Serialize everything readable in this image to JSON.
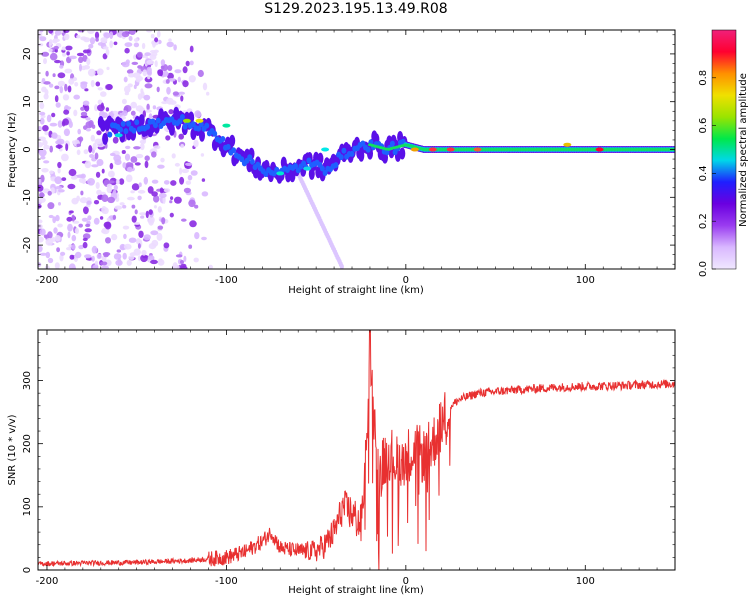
{
  "title": "S129.2023.195.13.49.R08",
  "chart_data": [
    {
      "type": "heatmap",
      "xlabel": "Height of straight line (km)",
      "ylabel": "Frequency (Hz)",
      "xlim": [
        -205,
        150
      ],
      "ylim": [
        -25,
        25
      ],
      "xticks": [
        -200,
        -100,
        0,
        100
      ],
      "yticks": [
        -20,
        -10,
        0,
        10,
        20
      ],
      "grid": false,
      "colorbar": {
        "label": "Normalized spectral amplitude",
        "range": [
          0,
          1
        ],
        "ticks": [
          "0.0",
          "0.2",
          "0.4",
          "0.6",
          "0.8"
        ],
        "colors": [
          "#f0e8ff",
          "#d9b8ff",
          "#9a3cf0",
          "#6a00e0",
          "#1f1fff",
          "#00d8e8",
          "#00e84a",
          "#9ae400",
          "#f0e000",
          "#ff9000",
          "#ff0030",
          "#f0207a"
        ]
      },
      "description_points": {
        "ridge_x": [
          -165,
          -150,
          -125,
          -110,
          -100,
          -90,
          -80,
          -70,
          -55,
          -45,
          -30,
          -20,
          -10,
          0,
          10,
          30,
          60,
          90,
          120,
          150
        ],
        "ridge_y": [
          4,
          5,
          6,
          4,
          1,
          -2,
          -4,
          -5,
          -3,
          -4,
          0,
          1,
          0,
          1,
          0,
          0,
          0,
          0,
          0,
          0
        ]
      }
    },
    {
      "type": "line",
      "xlabel": "Height of straight line (km)",
      "ylabel": "SNR (10 * v/v)",
      "xlim": [
        -205,
        150
      ],
      "ylim": [
        0,
        380
      ],
      "xticks": [
        -200,
        -100,
        0,
        100
      ],
      "yticks": [
        0,
        100,
        200,
        300
      ],
      "grid": false,
      "series_color": "#e83030",
      "profile_x": [
        -205,
        -150,
        -120,
        -100,
        -90,
        -80,
        -75,
        -70,
        -60,
        -50,
        -45,
        -40,
        -35,
        -30,
        -25,
        -22,
        -20,
        -15,
        -10,
        -5,
        0,
        5,
        10,
        15,
        20,
        25,
        30,
        40,
        60,
        90,
        120,
        150
      ],
      "profile_y": [
        10,
        12,
        15,
        20,
        28,
        45,
        60,
        35,
        30,
        30,
        40,
        60,
        100,
        90,
        70,
        200,
        330,
        150,
        190,
        170,
        180,
        190,
        180,
        200,
        230,
        260,
        270,
        280,
        285,
        290,
        292,
        295
      ]
    }
  ]
}
